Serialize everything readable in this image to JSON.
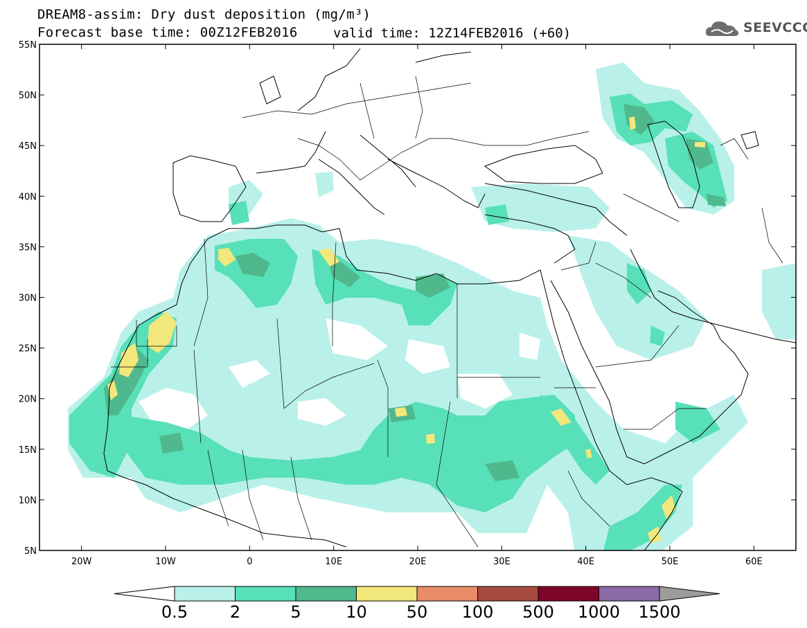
{
  "header": {
    "title": "DREAM8-assim: Dry dust deposition (mg/m³)",
    "base_time": "Forecast base time: 00Z12FEB2016",
    "valid_time": "valid time: 12Z14FEB2016 (+60)"
  },
  "logo": {
    "text": "SEEVCCC",
    "icon": "cloud-icon"
  },
  "map": {
    "lon_range": [
      -25,
      65
    ],
    "lat_range": [
      5,
      55
    ],
    "lat_ticks": [
      "55N",
      "50N",
      "45N",
      "40N",
      "35N",
      "30N",
      "25N",
      "20N",
      "15N",
      "10N",
      "5N"
    ],
    "lon_ticks": [
      "20W",
      "10W",
      "0",
      "10E",
      "20E",
      "30E",
      "40E",
      "50E",
      "60E"
    ]
  },
  "legend": {
    "colors": [
      "#b9f1ea",
      "#58e0b8",
      "#4fb88c",
      "#f2e77a",
      "#e98c68",
      "#a54a3f",
      "#7d0628",
      "#8a6aa4"
    ],
    "under_color": "#ffffff",
    "over_color": "#9c9c9c",
    "labels": [
      "0.5",
      "2",
      "5",
      "10",
      "50",
      "100",
      "500",
      "1000",
      "1500"
    ]
  }
}
